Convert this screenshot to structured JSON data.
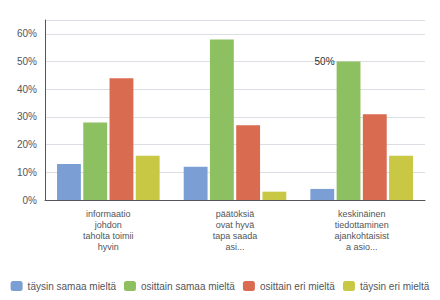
{
  "chart_data": {
    "type": "bar",
    "categories": [
      "informaatio\njohdon\ntaholta toimii\nhyvin",
      "päätöksiä\novat hyvä\ntapa saada\nasi...",
      "keskinäinen\ntiedottaminen\najankohtaisist\na asio..."
    ],
    "series": [
      {
        "name": "täysin samaa mieltä",
        "color": "#7b9fd4",
        "values": [
          13,
          12,
          4
        ]
      },
      {
        "name": "osittain samaa mieltä",
        "color": "#8dc060",
        "values": [
          28,
          58,
          50
        ]
      },
      {
        "name": "osittain eri mieltä",
        "color": "#d96b50",
        "values": [
          44,
          27,
          31
        ]
      },
      {
        "name": "täysin eri mieltä",
        "color": "#c8c844",
        "values": [
          16,
          3,
          16
        ]
      }
    ],
    "annotations": [
      {
        "text": "50%",
        "series": "osittain samaa mieltä",
        "category": "keskinäinen\ntiedottaminen\najankohtaisist\na asio..."
      }
    ],
    "ylim": [
      0,
      65
    ],
    "yticks": [
      {
        "value": 0,
        "label": "0%"
      },
      {
        "value": 10,
        "label": "10%"
      },
      {
        "value": 20,
        "label": "20%"
      },
      {
        "value": 30,
        "label": "30%"
      },
      {
        "value": 40,
        "label": "40%"
      },
      {
        "value": 50,
        "label": "50%"
      },
      {
        "value": 60,
        "label": "60%"
      }
    ],
    "grid": true,
    "legend": "bottom"
  }
}
